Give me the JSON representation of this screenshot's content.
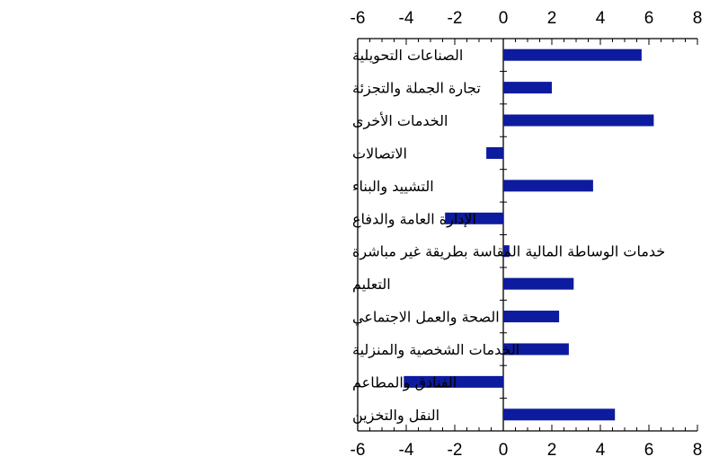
{
  "chart_data": {
    "type": "bar",
    "orientation": "horizontal",
    "categories": [
      "الصناعات التحويلية",
      "تجارة الجملة والتجزئة",
      "الخدمات الأخرى",
      "الاتصالات",
      "التشييد والبناء",
      "الإدارة العامة والدفاع",
      "خدمات الوساطة المالية المقاسة بطريقة غير مباشرة",
      "التعليم",
      "الصحة والعمل الاجتماعي",
      "الخدمات الشخصية والمنزلية",
      "الفنادق والمطاعم",
      "النقل والتخزين"
    ],
    "values": [
      5.7,
      2.0,
      6.2,
      -0.7,
      3.7,
      -2.4,
      0.25,
      2.9,
      2.3,
      2.7,
      -4.1,
      4.6
    ],
    "xlim": [
      -6,
      8
    ],
    "xticks": [
      -6,
      -4,
      -2,
      0,
      2,
      4,
      6,
      8
    ],
    "xticks_top": true,
    "xticks_bottom": true,
    "grid": false,
    "legend": "none",
    "bar_color": "#0d1b9e",
    "title": "",
    "xlabel": "",
    "ylabel": ""
  }
}
